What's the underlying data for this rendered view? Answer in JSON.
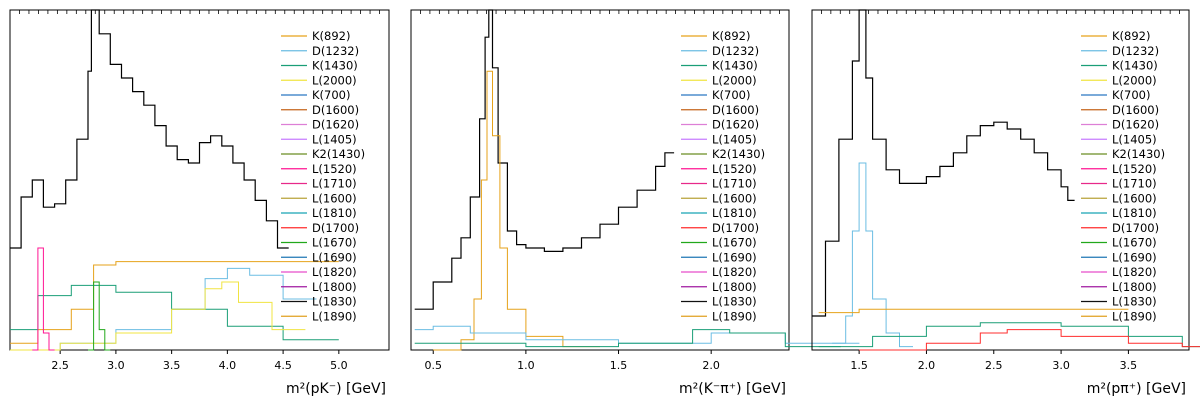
{
  "figure": {
    "colors": {
      "black": "#000000",
      "K(892)": "#e6a21a",
      "D(1232)": "#6bbde3",
      "K(1430)": "#1a9e77",
      "L(2000)": "#f0e442",
      "K(700)": "#2a78c2",
      "D(1600)": "#c5651c",
      "D(1620)": "#dd7fd6",
      "L(1405)": "#c77cff",
      "K2(1430)": "#6b8e23",
      "L(1520)": "#ff1493",
      "L(1710)": "#e7298a",
      "L(1600)": "#b8a23a",
      "L(1810)": "#17a3b5",
      "D(1700)": "#ff2d2d",
      "L(1670)": "#22a81b",
      "L(1690)": "#1f77b4",
      "L(1820)": "#e84ec9",
      "L(1800)": "#a01aa0",
      "L(1830)": "#111111",
      "L(1890)": "#e0a020"
    }
  },
  "chart_data": [
    {
      "type": "line",
      "style": "step-histogram",
      "xlabel": "m²(pK⁻) [GeV]",
      "ylabel": "",
      "xlim": [
        2.05,
        5.45
      ],
      "ylim": [
        0,
        1
      ],
      "xticks": [
        "2.5",
        "3.0",
        "3.5",
        "4.0",
        "4.5",
        "5.0"
      ],
      "xtick_values": [
        2.5,
        3.0,
        3.5,
        4.0,
        4.5,
        5.0
      ],
      "legend": [
        "K(892)",
        "D(1232)",
        "K(1430)",
        "L(2000)",
        "K(700)",
        "D(1600)",
        "D(1620)",
        "L(1405)",
        "K2(1430)",
        "L(1520)",
        "L(1710)",
        "L(1600)",
        "L(1810)",
        "D(1700)",
        "L(1670)",
        "L(1690)",
        "L(1820)",
        "L(1800)",
        "L(1830)",
        "L(1890)"
      ],
      "legend_position": "upper-right",
      "series": [
        {
          "key": "total",
          "x": [
            2.05,
            2.15,
            2.25,
            2.35,
            2.45,
            2.55,
            2.65,
            2.75,
            2.78,
            2.85,
            2.95,
            3.05,
            3.15,
            3.25,
            3.35,
            3.45,
            3.55,
            3.65,
            3.75,
            3.85,
            3.95,
            4.05,
            4.15,
            4.25,
            4.35,
            4.45
          ],
          "y": [
            0.3,
            0.45,
            0.5,
            0.42,
            0.43,
            0.5,
            0.62,
            0.82,
            1.0,
            0.93,
            0.84,
            0.8,
            0.76,
            0.72,
            0.66,
            0.6,
            0.56,
            0.55,
            0.61,
            0.63,
            0.6,
            0.55,
            0.5,
            0.44,
            0.38,
            0.3
          ]
        },
        {
          "key": "K(892)",
          "x": [
            2.05,
            2.3,
            2.6,
            2.8,
            3.0,
            3.5,
            4.0,
            4.5
          ],
          "y": [
            0.02,
            0.06,
            0.12,
            0.25,
            0.26,
            0.26,
            0.26,
            0.26
          ]
        },
        {
          "key": "D(1232)",
          "x": [
            2.05,
            2.5,
            3.0,
            3.5,
            3.8,
            4.0,
            4.2,
            4.5
          ],
          "y": [
            0.0,
            0.02,
            0.06,
            0.12,
            0.21,
            0.24,
            0.22,
            0.15
          ]
        },
        {
          "key": "K(1430)",
          "x": [
            2.05,
            2.3,
            2.6,
            3.0,
            3.5,
            4.0,
            4.5
          ],
          "y": [
            0.06,
            0.16,
            0.19,
            0.17,
            0.12,
            0.07,
            0.03
          ]
        },
        {
          "key": "L(2000)",
          "x": [
            2.05,
            2.5,
            3.0,
            3.5,
            3.8,
            3.95,
            4.1,
            4.4
          ],
          "y": [
            0.0,
            0.02,
            0.05,
            0.12,
            0.18,
            0.2,
            0.14,
            0.06
          ]
        },
        {
          "key": "L(1520)",
          "x": [
            2.25,
            2.3,
            2.35,
            2.4
          ],
          "y": [
            0.0,
            0.3,
            0.05,
            0.0
          ]
        },
        {
          "key": "L(1670)",
          "x": [
            2.75,
            2.8,
            2.85,
            2.9
          ],
          "y": [
            0.0,
            0.2,
            0.06,
            0.0
          ]
        }
      ]
    },
    {
      "type": "line",
      "style": "step-histogram",
      "xlabel": "m²(K⁻π⁺) [GeV]",
      "ylabel": "",
      "xlim": [
        0.38,
        2.42
      ],
      "ylim": [
        0,
        1
      ],
      "xticks": [
        "0.5",
        "1.0",
        "1.5",
        "2.0"
      ],
      "xtick_values": [
        0.5,
        1.0,
        1.5,
        2.0
      ],
      "legend": [
        "K(892)",
        "D(1232)",
        "K(1430)",
        "L(2000)",
        "K(700)",
        "D(1600)",
        "D(1620)",
        "L(1405)",
        "K2(1430)",
        "L(1520)",
        "L(1710)",
        "L(1600)",
        "L(1810)",
        "D(1700)",
        "L(1670)",
        "L(1690)",
        "L(1820)",
        "L(1800)",
        "L(1830)",
        "L(1890)"
      ],
      "legend_position": "upper-right",
      "series": [
        {
          "key": "total",
          "x": [
            0.4,
            0.5,
            0.6,
            0.65,
            0.7,
            0.75,
            0.78,
            0.8,
            0.82,
            0.85,
            0.9,
            0.95,
            1.0,
            1.1,
            1.2,
            1.3,
            1.4,
            1.5,
            1.6,
            1.7,
            1.75
          ],
          "y": [
            0.12,
            0.2,
            0.27,
            0.33,
            0.45,
            0.68,
            0.92,
            1.0,
            0.83,
            0.55,
            0.35,
            0.31,
            0.3,
            0.29,
            0.3,
            0.33,
            0.37,
            0.42,
            0.47,
            0.54,
            0.58
          ]
        },
        {
          "key": "K(892)",
          "x": [
            0.5,
            0.65,
            0.72,
            0.76,
            0.79,
            0.82,
            0.86,
            0.9,
            1.0,
            1.2
          ],
          "y": [
            0.0,
            0.03,
            0.15,
            0.5,
            0.82,
            0.63,
            0.3,
            0.12,
            0.04,
            0.01
          ]
        },
        {
          "key": "D(1232)",
          "x": [
            0.4,
            0.5,
            0.7,
            1.0,
            1.5,
            2.0,
            2.4
          ],
          "y": [
            0.06,
            0.07,
            0.05,
            0.03,
            0.02,
            0.05,
            0.02
          ]
        },
        {
          "key": "K(1430)",
          "x": [
            0.4,
            1.0,
            1.5,
            1.9,
            2.1,
            2.4
          ],
          "y": [
            0.02,
            0.01,
            0.02,
            0.06,
            0.05,
            0.01
          ]
        }
      ]
    },
    {
      "type": "line",
      "style": "step-histogram",
      "xlabel": "m²(pπ⁺) [GeV]",
      "ylabel": "",
      "xlim": [
        1.15,
        3.95
      ],
      "ylim": [
        0,
        1
      ],
      "xticks": [
        "1.5",
        "2.0",
        "2.5",
        "3.0",
        "3.5"
      ],
      "xtick_values": [
        1.5,
        2.0,
        2.5,
        3.0,
        3.5
      ],
      "legend": [
        "K(892)",
        "D(1232)",
        "K(1430)",
        "L(2000)",
        "K(700)",
        "D(1600)",
        "D(1620)",
        "L(1405)",
        "K2(1430)",
        "L(1520)",
        "L(1710)",
        "L(1600)",
        "L(1810)",
        "D(1700)",
        "L(1670)",
        "L(1690)",
        "L(1820)",
        "L(1800)",
        "L(1830)",
        "L(1890)"
      ],
      "legend_position": "upper-right",
      "series": [
        {
          "key": "total",
          "x": [
            1.15,
            1.25,
            1.35,
            1.45,
            1.5,
            1.55,
            1.6,
            1.7,
            1.8,
            1.9,
            2.0,
            2.1,
            2.2,
            2.3,
            2.4,
            2.5,
            2.6,
            2.7,
            2.8,
            2.9,
            3.0,
            3.05
          ],
          "y": [
            0.1,
            0.32,
            0.62,
            0.85,
            1.0,
            0.8,
            0.62,
            0.53,
            0.49,
            0.49,
            0.51,
            0.54,
            0.58,
            0.63,
            0.66,
            0.67,
            0.65,
            0.62,
            0.58,
            0.53,
            0.48,
            0.44
          ]
        },
        {
          "key": "D(1232)",
          "x": [
            1.3,
            1.4,
            1.45,
            1.5,
            1.55,
            1.6,
            1.7,
            1.8
          ],
          "y": [
            0.02,
            0.1,
            0.35,
            0.55,
            0.35,
            0.15,
            0.05,
            0.01
          ]
        },
        {
          "key": "K(892)",
          "x": [
            1.2,
            1.5,
            2.0,
            2.5,
            3.0
          ],
          "y": [
            0.11,
            0.12,
            0.12,
            0.12,
            0.12
          ]
        },
        {
          "key": "K(1430)",
          "x": [
            1.2,
            1.6,
            2.0,
            2.4,
            3.0,
            3.5,
            3.9
          ],
          "y": [
            0.01,
            0.04,
            0.07,
            0.08,
            0.07,
            0.04,
            0.01
          ]
        },
        {
          "key": "D(1700)",
          "x": [
            1.5,
            2.0,
            2.4,
            2.6,
            3.0,
            3.5,
            3.9
          ],
          "y": [
            0.0,
            0.02,
            0.05,
            0.06,
            0.04,
            0.02,
            0.01
          ]
        }
      ]
    }
  ]
}
